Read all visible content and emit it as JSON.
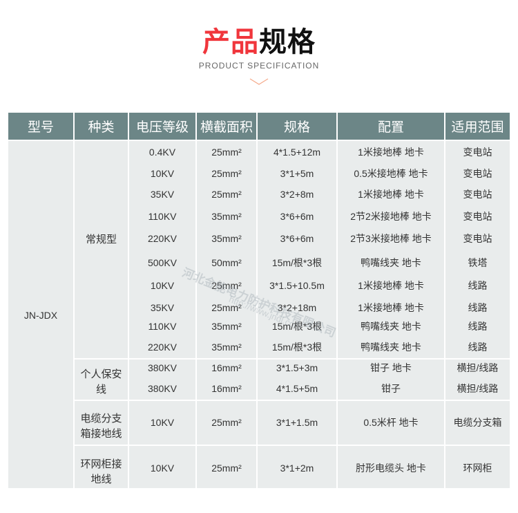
{
  "header": {
    "title_red": "产品",
    "title_black": "规格",
    "subtitle": "PRODUCT SPECIFICATION"
  },
  "colors": {
    "accent": "#f0363c",
    "table_header": "#6c8687",
    "cell_bg": "#e9ecec"
  },
  "table": {
    "columns": [
      "型号",
      "种类",
      "电压等级",
      "横截面积",
      "规格",
      "配置",
      "适用范围"
    ],
    "model": "JN-JDX",
    "groups": [
      {
        "category": "常规型",
        "rows": [
          [
            "0.4KV",
            "25mm²",
            "4*1.5+12m",
            "1米接地棒 地卡",
            "变电站"
          ],
          [
            "10KV",
            "25mm²",
            "3*1+5m",
            "0.5米接地棒 地卡",
            "变电站"
          ],
          [
            "35KV",
            "25mm²",
            "3*2+8m",
            "1米接地棒 地卡",
            "变电站"
          ],
          [
            "110KV",
            "35mm²",
            "3*6+6m",
            "2节2米接地棒 地卡",
            "变电站"
          ],
          [
            "220KV",
            "35mm²",
            "3*6+6m",
            "2节3米接地棒 地卡",
            "变电站"
          ],
          [
            "500KV",
            "50mm²",
            "15m/根*3根",
            "鸭嘴线夹 地卡",
            "铁塔"
          ],
          [
            "10KV",
            "25mm²",
            "3*1.5+10.5m",
            "1米接地棒 地卡",
            "线路"
          ],
          [
            "35KV",
            "25mm²",
            "3*2+18m",
            "1米接地棒 地卡",
            "线路"
          ],
          [
            "110KV",
            "35mm²",
            "15m/根*3根",
            "鸭嘴线夹 地卡",
            "线路"
          ],
          [
            "220KV",
            "35mm²",
            "15m/根*3根",
            "鸭嘴线夹 地卡",
            "线路"
          ]
        ]
      },
      {
        "category": "个人保安线",
        "rows": [
          [
            "380KV",
            "16mm²",
            "3*1.5+3m",
            "钳子 地卡",
            "横担/线路"
          ],
          [
            "380KV",
            "16mm²",
            "4*1.5+5m",
            "钳子",
            "横担/线路"
          ]
        ]
      },
      {
        "category": "电缆分支箱接地线",
        "rows": [
          [
            "10KV",
            "25mm²",
            "3*1+1.5m",
            "0.5米杆 地卡",
            "电缆分支箱"
          ]
        ]
      },
      {
        "category": "环网柜接地线",
        "rows": [
          [
            "10KV",
            "25mm²",
            "3*1+2m",
            "肘形电缆头 地卡",
            "环网柜"
          ]
        ]
      }
    ]
  },
  "watermark": {
    "company": "河北金能电力防护科技有限公司",
    "url": "http://www.jndl.com"
  }
}
